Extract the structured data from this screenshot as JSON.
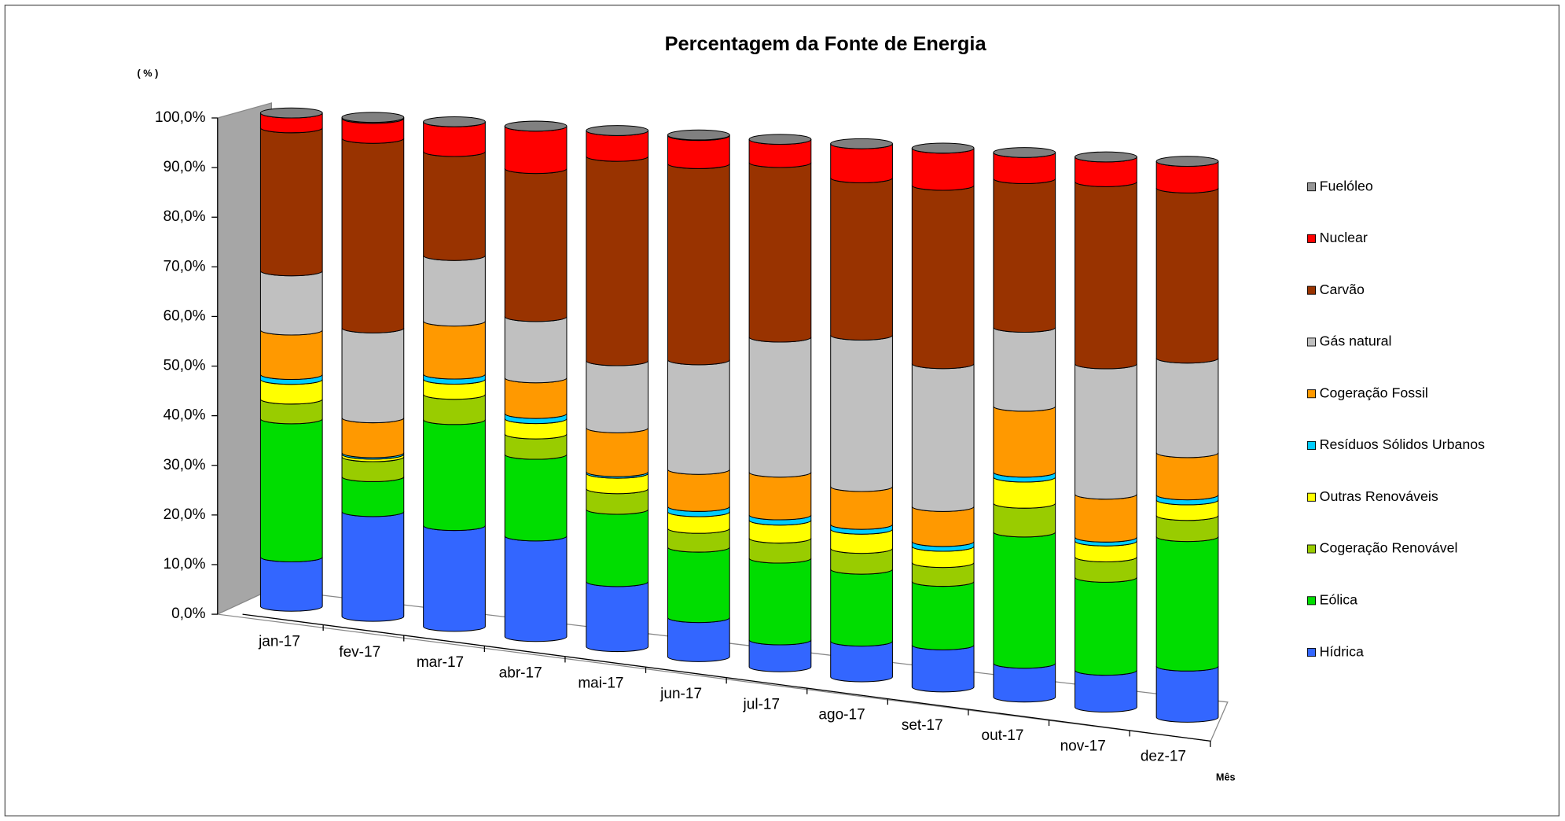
{
  "chart_data": {
    "type": "stacked-cylinder",
    "title": "Percentagem da Fonte de Energia",
    "y_unit": "( % )",
    "x_label": "Mês",
    "categories": [
      "jan-17",
      "fev-17",
      "mar-17",
      "abr-17",
      "mai-17",
      "jun-17",
      "jul-17",
      "ago-17",
      "set-17",
      "out-17",
      "nov-17",
      "dez-17"
    ],
    "ylim": [
      0,
      100
    ],
    "yticks": [
      {
        "value": 0,
        "label": "0,0%"
      },
      {
        "value": 10,
        "label": "10,0%"
      },
      {
        "value": 20,
        "label": "20,0%"
      },
      {
        "value": 30,
        "label": "30,0%"
      },
      {
        "value": 40,
        "label": "40,0%"
      },
      {
        "value": 50,
        "label": "50,0%"
      },
      {
        "value": 60,
        "label": "60,0%"
      },
      {
        "value": 70,
        "label": "70,0%"
      },
      {
        "value": 80,
        "label": "80,0%"
      },
      {
        "value": 90,
        "label": "90,0%"
      },
      {
        "value": 100,
        "label": "100,0%"
      }
    ],
    "series": [
      {
        "name": "Hídrica",
        "color": "#3366ff",
        "values": [
          10,
          21,
          20,
          19.7,
          12.6,
          7.5,
          5.1,
          6.7,
          7.8,
          6.2,
          6.7,
          9.2
        ]
      },
      {
        "name": "Eólica",
        "color": "#00dd00",
        "values": [
          28,
          7,
          21,
          16,
          14,
          13.5,
          15.5,
          13.5,
          11.8,
          24.1,
          16.9,
          23.3
        ]
      },
      {
        "name": "Cogeração Renovável",
        "color": "#99cc00",
        "values": [
          4,
          4,
          5,
          4,
          4,
          3.6,
          3.8,
          3.9,
          3.5,
          5.3,
          3.7,
          3.8
        ]
      },
      {
        "name": "Outras Renováveis",
        "color": "#ffff00",
        "values": [
          4,
          0.5,
          3,
          3,
          3,
          3.2,
          3.4,
          3.6,
          3,
          4.8,
          2.9,
          2.8
        ]
      },
      {
        "name": "Resíduos Sólidos Urbanos",
        "color": "#00ccff",
        "values": [
          1,
          0.3,
          1,
          1,
          0.3,
          1,
          1,
          0.9,
          0.9,
          0.9,
          0.7,
          0.9
        ]
      },
      {
        "name": "Cogeração Fossil",
        "color": "#ff9900",
        "values": [
          9,
          7,
          10.5,
          7,
          8.5,
          7.1,
          8.1,
          7.1,
          6.5,
          12.1,
          7.8,
          7.6
        ]
      },
      {
        "name": "Gás natural",
        "color": "#c0c0c0",
        "values": [
          12,
          18,
          13,
          12,
          13,
          21,
          25.6,
          28.4,
          26.5,
          14.5,
          23.7,
          17
        ]
      },
      {
        "name": "Carvão",
        "color": "#993300",
        "values": [
          29,
          38,
          20.6,
          29,
          39.6,
          37.6,
          33.1,
          29.5,
          33.1,
          27.3,
          33.1,
          30.6
        ]
      },
      {
        "name": "Nuclear",
        "color": "#ff0000",
        "values": [
          3,
          4,
          5.9,
          8.3,
          5,
          5.4,
          4.4,
          6.4,
          6.9,
          4.8,
          4.5,
          4.8
        ]
      },
      {
        "name": "Fuelóleo",
        "color": "#969696",
        "values": [
          0,
          0.2,
          0,
          0,
          0,
          0.1,
          0,
          0,
          0,
          0,
          0,
          0
        ]
      }
    ]
  }
}
